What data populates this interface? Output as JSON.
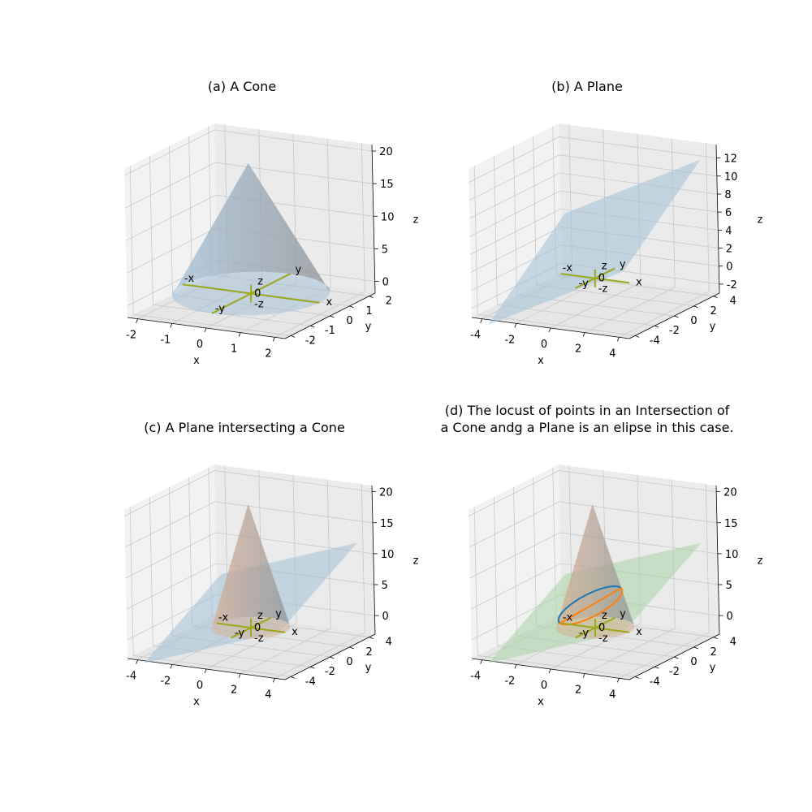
{
  "chart_data": [
    {
      "type": "surface3d",
      "title": "(a) A Cone",
      "xlabel": "x",
      "ylabel": "y",
      "zlabel": "z",
      "xlim": [
        -2.3,
        2.3
      ],
      "ylim": [
        -2.3,
        2.3
      ],
      "zlim": [
        -1.8,
        21
      ],
      "xticks": [
        -2,
        -1,
        0,
        1,
        2
      ],
      "yticks": [
        -2,
        -1,
        0,
        1,
        2
      ],
      "zticks": [
        0,
        5,
        10,
        15,
        20
      ],
      "grid": true,
      "surfaces": [
        {
          "kind": "cone",
          "apex": [
            0,
            0,
            20
          ],
          "base_center": [
            0,
            0,
            0
          ],
          "radius": 2,
          "color": "#a3c1d9",
          "opacity": 0.75
        }
      ],
      "axis_markers": {
        "half_length": 2,
        "color": "#9aa81a",
        "labels": [
          "x",
          "-x",
          "y",
          "-y",
          "z",
          "-z",
          "0"
        ]
      }
    },
    {
      "type": "surface3d",
      "title": "(b) A Plane",
      "xlabel": "x",
      "ylabel": "y",
      "zlabel": "z",
      "xlim": [
        -4.6,
        4.6
      ],
      "ylim": [
        -4.6,
        4.6
      ],
      "zlim": [
        -3,
        13.5
      ],
      "xticks": [
        -4,
        -2,
        0,
        2,
        4
      ],
      "yticks": [
        -4,
        -2,
        0,
        2,
        4
      ],
      "zticks": [
        -2,
        0,
        2,
        4,
        6,
        8,
        10,
        12
      ],
      "grid": true,
      "surfaces": [
        {
          "kind": "plane",
          "equation": "z = x + y + 4",
          "x_range": [
            -4,
            4
          ],
          "y_range": [
            -4,
            4
          ],
          "color": "#a3c1d9",
          "opacity": 0.55
        }
      ],
      "axis_markers": {
        "half_length": 2,
        "color": "#9aa81a",
        "labels": [
          "x",
          "-x",
          "y",
          "-y",
          "z",
          "-z",
          "0"
        ]
      }
    },
    {
      "type": "surface3d",
      "title": "(c) A Plane intersecting a Cone",
      "xlabel": "x",
      "ylabel": "y",
      "zlabel": "z",
      "xlim": [
        -4.6,
        4.6
      ],
      "ylim": [
        -4.6,
        4.6
      ],
      "zlim": [
        -3,
        21
      ],
      "xticks": [
        -4,
        -2,
        0,
        2,
        4
      ],
      "yticks": [
        -4,
        -2,
        0,
        2,
        4
      ],
      "zticks": [
        0,
        5,
        10,
        15,
        20
      ],
      "grid": true,
      "surfaces": [
        {
          "kind": "plane",
          "equation": "z = x + y + 4",
          "x_range": [
            -4,
            4
          ],
          "y_range": [
            -4,
            4
          ],
          "color": "#a3c1d9",
          "opacity": 0.55
        },
        {
          "kind": "cone",
          "apex": [
            0,
            0,
            20
          ],
          "base_center": [
            0,
            0,
            0
          ],
          "radius": 2,
          "color": "#d9ad8f",
          "opacity": 0.7
        }
      ],
      "axis_markers": {
        "half_length": 2,
        "color": "#9aa81a",
        "labels": [
          "x",
          "-x",
          "y",
          "-y",
          "z",
          "-z",
          "0"
        ]
      }
    },
    {
      "type": "surface3d",
      "title": "(d) The locust of points in an Intersection of\na Cone andg a Plane is an elipse in this case.",
      "xlabel": "x",
      "ylabel": "y",
      "zlabel": "z",
      "xlim": [
        -4.6,
        4.6
      ],
      "ylim": [
        -4.6,
        4.6
      ],
      "zlim": [
        -3,
        21
      ],
      "xticks": [
        -4,
        -2,
        0,
        2,
        4
      ],
      "yticks": [
        -4,
        -2,
        0,
        2,
        4
      ],
      "zticks": [
        0,
        5,
        10,
        15,
        20
      ],
      "grid": true,
      "surfaces": [
        {
          "kind": "plane",
          "equation": "z = x + y + 4",
          "x_range": [
            -4,
            4
          ],
          "y_range": [
            -4,
            4
          ],
          "color": "#a8d4a3",
          "opacity": 0.55
        },
        {
          "kind": "cone",
          "apex": [
            0,
            0,
            20
          ],
          "base_center": [
            0,
            0,
            0
          ],
          "radius": 2,
          "color": "#d9ad8f",
          "opacity": 0.7
        }
      ],
      "curves": [
        {
          "kind": "intersection-ellipse",
          "front_color": "#ff7f0e",
          "back_color": "#1f77b4"
        }
      ],
      "axis_markers": {
        "half_length": 2,
        "color": "#9aa81a",
        "labels": [
          "x",
          "-x",
          "y",
          "-y",
          "z",
          "-z",
          "0"
        ]
      }
    }
  ]
}
